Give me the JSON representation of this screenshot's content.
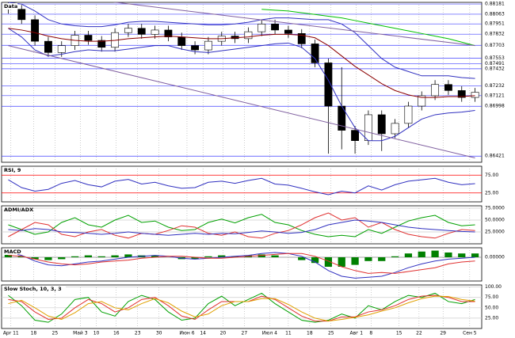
{
  "chart_data": [
    {
      "type": "candlestick",
      "title": "Data",
      "xlim": [
        -0.5,
        35.5
      ],
      "ylim": [
        0.8635,
        0.882
      ],
      "yticks": [
        0.88181,
        0.88063,
        0.87951,
        0.87832,
        0.87703,
        0.87553,
        0.87491,
        0.87432,
        0.87232,
        0.87121,
        0.86998,
        0.86421
      ],
      "grid_color": "#4040ff",
      "up_color": "#ffffff",
      "down_color": "#000000",
      "open": [
        0.8818,
        0.8812,
        0.88,
        0.8775,
        0.8762,
        0.877,
        0.8782,
        0.8776,
        0.8768,
        0.8785,
        0.879,
        0.8783,
        0.8788,
        0.878,
        0.877,
        0.8765,
        0.8775,
        0.8781,
        0.8778,
        0.8786,
        0.8795,
        0.8788,
        0.8784,
        0.8772,
        0.875,
        0.87,
        0.8672,
        0.866,
        0.869,
        0.8668,
        0.868,
        0.87,
        0.8712,
        0.8725,
        0.8718,
        0.871
      ],
      "high": [
        0.8823,
        0.8817,
        0.8805,
        0.878,
        0.8775,
        0.8787,
        0.8787,
        0.8781,
        0.879,
        0.8795,
        0.8795,
        0.8793,
        0.8793,
        0.8785,
        0.8775,
        0.878,
        0.8786,
        0.8786,
        0.8791,
        0.88,
        0.88,
        0.8793,
        0.8789,
        0.8777,
        0.8755,
        0.8745,
        0.8677,
        0.8695,
        0.8695,
        0.8685,
        0.8705,
        0.8717,
        0.873,
        0.873,
        0.8723,
        0.8721
      ],
      "low": [
        0.8807,
        0.8795,
        0.877,
        0.8757,
        0.8757,
        0.8765,
        0.8771,
        0.8763,
        0.8763,
        0.878,
        0.8778,
        0.8778,
        0.8775,
        0.8765,
        0.876,
        0.876,
        0.877,
        0.8773,
        0.8773,
        0.8781,
        0.8783,
        0.8779,
        0.8767,
        0.8745,
        0.8645,
        0.865,
        0.8645,
        0.8655,
        0.8648,
        0.8663,
        0.8675,
        0.8695,
        0.8707,
        0.8713,
        0.8705,
        0.8705
      ],
      "close": [
        0.8812,
        0.88,
        0.8775,
        0.8762,
        0.877,
        0.8782,
        0.8776,
        0.8768,
        0.8785,
        0.879,
        0.8783,
        0.8788,
        0.878,
        0.877,
        0.8765,
        0.8775,
        0.8781,
        0.8778,
        0.8786,
        0.8795,
        0.8788,
        0.8784,
        0.8772,
        0.875,
        0.87,
        0.8672,
        0.866,
        0.869,
        0.8668,
        0.868,
        0.87,
        0.8712,
        0.8725,
        0.8718,
        0.871,
        0.8716
      ],
      "series": [
        {
          "color": "#3030c0",
          "values": [
            0.882,
            0.8818,
            0.881,
            0.88,
            0.8795,
            0.8793,
            0.8792,
            0.8792,
            0.8794,
            0.8797,
            0.8798,
            0.8798,
            0.8797,
            0.8796,
            0.8795,
            0.8794,
            0.8794,
            0.8795,
            0.8797,
            0.88,
            0.8802,
            0.8802,
            0.8801,
            0.88,
            0.88,
            0.8795,
            0.8785,
            0.877,
            0.8755,
            0.8745,
            0.874,
            0.8735,
            0.8735,
            0.8735,
            0.8733,
            0.8732
          ]
        },
        {
          "color": "#3030c0",
          "values": [
            0.879,
            0.878,
            0.8765,
            0.8758,
            0.876,
            0.8763,
            0.8765,
            0.8764,
            0.8764,
            0.8766,
            0.8768,
            0.877,
            0.877,
            0.8766,
            0.8763,
            0.8762,
            0.8764,
            0.8766,
            0.8768,
            0.877,
            0.8772,
            0.8773,
            0.8768,
            0.8755,
            0.873,
            0.87,
            0.8675,
            0.866,
            0.866,
            0.8665,
            0.8675,
            0.8685,
            0.869,
            0.8692,
            0.8693,
            0.8695
          ]
        },
        {
          "color": "#8b0000",
          "values": [
            0.879,
            0.8788,
            0.8785,
            0.8781,
            0.8778,
            0.8776,
            0.8775,
            0.8775,
            0.8776,
            0.8778,
            0.8779,
            0.878,
            0.8781,
            0.878,
            0.8779,
            0.8778,
            0.8778,
            0.8779,
            0.878,
            0.8782,
            0.8783,
            0.8783,
            0.8782,
            0.8779,
            0.877,
            0.8758,
            0.8746,
            0.8736,
            0.8726,
            0.8718,
            0.8713,
            0.871,
            0.871,
            0.8711,
            0.8711,
            0.8712
          ]
        },
        {
          "color": "#00c000",
          "values": [
            null,
            null,
            null,
            null,
            null,
            null,
            null,
            null,
            null,
            null,
            null,
            null,
            null,
            null,
            null,
            null,
            null,
            null,
            null,
            0.8812,
            0.8811,
            0.881,
            0.8808,
            0.8806,
            0.8804,
            0.8802,
            0.8799,
            0.8796,
            0.8793,
            0.879,
            0.8787,
            0.8784,
            0.8781,
            0.8778,
            0.8774,
            0.877
          ]
        }
      ],
      "trendlines": [
        {
          "color": "#8060a0",
          "values": [
            0.8835,
            0.877
          ]
        },
        {
          "color": "#8060a0",
          "values": [
            0.877,
            0.864
          ]
        }
      ]
    },
    {
      "type": "line",
      "title": "RSI, 9",
      "ylim": [
        0,
        100
      ],
      "yticks": [
        {
          "value": 25,
          "label": "25.00"
        },
        {
          "value": 75,
          "label": "75.00"
        }
      ],
      "grid_color": "#ff0000",
      "series": [
        {
          "color": "#3030c0",
          "values": [
            62,
            40,
            30,
            35,
            52,
            60,
            48,
            42,
            58,
            63,
            50,
            55,
            45,
            38,
            40,
            55,
            58,
            52,
            60,
            66,
            50,
            47,
            38,
            28,
            20,
            30,
            25,
            45,
            33,
            48,
            58,
            62,
            66,
            55,
            48,
            51
          ]
        }
      ]
    },
    {
      "type": "line",
      "title": "ADMI/ADX",
      "ylim": [
        0,
        80
      ],
      "yticks": [
        {
          "value": 25,
          "label": "25.0000"
        },
        {
          "value": 50,
          "label": "50.0000"
        },
        {
          "value": 75,
          "label": "75.0000"
        }
      ],
      "grid_color": "#cccccc",
      "series": [
        {
          "color": "#00a000",
          "values": [
            40,
            30,
            20,
            25,
            45,
            55,
            40,
            35,
            50,
            60,
            45,
            48,
            35,
            28,
            30,
            45,
            52,
            44,
            55,
            62,
            45,
            40,
            28,
            20,
            15,
            18,
            15,
            30,
            22,
            35,
            48,
            55,
            60,
            45,
            38,
            40
          ]
        },
        {
          "color": "#e03030",
          "values": [
            15,
            30,
            45,
            40,
            20,
            15,
            25,
            30,
            18,
            12,
            22,
            20,
            28,
            38,
            35,
            22,
            18,
            25,
            15,
            12,
            22,
            28,
            40,
            55,
            65,
            50,
            55,
            35,
            45,
            30,
            20,
            15,
            12,
            22,
            30,
            28
          ]
        },
        {
          "color": "#3030c0",
          "values": [
            30,
            28,
            32,
            30,
            25,
            24,
            22,
            20,
            22,
            25,
            22,
            20,
            18,
            20,
            22,
            20,
            22,
            21,
            24,
            27,
            25,
            22,
            24,
            30,
            40,
            45,
            50,
            48,
            45,
            40,
            35,
            32,
            30,
            28,
            26,
            25
          ]
        }
      ]
    },
    {
      "type": "macd",
      "title": "MACD",
      "ylim": [
        -0.0025,
        0.001
      ],
      "yticks": [
        {
          "value": 0,
          "label": "0.00000"
        }
      ],
      "grid_color": "#888888",
      "color": "#008000",
      "values": [
        0.0003,
        0.0001,
        -0.0002,
        -0.0003,
        -0.0002,
        0.0001,
        0.0002,
        0.0001,
        0.0002,
        0.0003,
        0.0002,
        0.0002,
        0,
        -0.0002,
        -0.0002,
        0.0001,
        0.0002,
        0.0001,
        0.0002,
        0.0003,
        0.0002,
        0,
        -0.0003,
        -0.0006,
        -0.001,
        -0.001,
        -0.0008,
        -0.0004,
        -0.0004,
        0.0001,
        0.0004,
        0.0006,
        0.0007,
        0.0005,
        0.0004,
        0.0004
      ],
      "series": [
        {
          "color": "#3030c0",
          "values": [
            0.0005,
            0.0002,
            -0.0004,
            -0.0008,
            -0.0009,
            -0.0007,
            -0.0005,
            -0.0004,
            -0.0002,
            0,
            0.0001,
            0.0002,
            0.0001,
            -0.0001,
            -0.0002,
            -0.0001,
            0,
            0.0001,
            0.0002,
            0.0004,
            0.0005,
            0.0004,
            0.0001,
            -0.0005,
            -0.0014,
            -0.002,
            -0.0022,
            -0.0021,
            -0.002,
            -0.0016,
            -0.0011,
            -0.0007,
            -0.0004,
            -0.0002,
            -0.0001,
            0
          ]
        },
        {
          "color": "#e03030",
          "values": [
            0.0002,
            0.0001,
            -0.0002,
            -0.0005,
            -0.0007,
            -0.0008,
            -0.0007,
            -0.0005,
            -0.0004,
            -0.0003,
            -0.0001,
            0,
            0.0001,
            0.0001,
            0,
            -0.0001,
            -0.0001,
            0,
            0.0001,
            0.0002,
            0.0003,
            0.0004,
            0.0004,
            0.0001,
            -0.0004,
            -0.001,
            -0.0014,
            -0.0017,
            -0.0016,
            -0.0017,
            -0.0015,
            -0.0013,
            -0.0011,
            -0.0007,
            -0.0005,
            -0.0004
          ]
        }
      ]
    },
    {
      "type": "line",
      "title": "Slow Stoch, 10, 3, 3",
      "ylim": [
        0,
        105
      ],
      "yticks": [
        {
          "value": 25,
          "label": "25.00"
        },
        {
          "value": 50,
          "label": "50.00"
        },
        {
          "value": 75,
          "label": "75.00"
        },
        {
          "value": 100,
          "label": "100.00"
        }
      ],
      "grid_color": "#cccccc",
      "xticks": [
        {
          "value": 0.2,
          "label": "Apr 11"
        },
        {
          "value": 1.9,
          "label": "18"
        },
        {
          "value": 3.5,
          "label": "25"
        },
        {
          "value": 5.4,
          "label": "Май 3"
        },
        {
          "value": 6.6,
          "label": "10"
        },
        {
          "value": 8.1,
          "label": "16"
        },
        {
          "value": 9.7,
          "label": "23"
        },
        {
          "value": 11.3,
          "label": "30"
        },
        {
          "value": 13.4,
          "label": "Июн 6"
        },
        {
          "value": 14.6,
          "label": "14"
        },
        {
          "value": 16.1,
          "label": "20"
        },
        {
          "value": 17.7,
          "label": "27"
        },
        {
          "value": 19.6,
          "label": "Июл 4"
        },
        {
          "value": 21.0,
          "label": "11"
        },
        {
          "value": 22.6,
          "label": "18"
        },
        {
          "value": 24.2,
          "label": "25"
        },
        {
          "value": 26.1,
          "label": "Авг 1"
        },
        {
          "value": 27.2,
          "label": "8"
        },
        {
          "value": 29.3,
          "label": "15"
        },
        {
          "value": 30.8,
          "label": "22"
        },
        {
          "value": 32.6,
          "label": "29"
        },
        {
          "value": 34.6,
          "label": "Сен 5"
        }
      ],
      "series": [
        {
          "color": "#00a000",
          "values": [
            80,
            55,
            20,
            15,
            35,
            70,
            75,
            40,
            30,
            65,
            80,
            70,
            40,
            20,
            25,
            60,
            78,
            55,
            70,
            85,
            60,
            40,
            20,
            15,
            20,
            35,
            25,
            55,
            45,
            65,
            80,
            75,
            85,
            65,
            60,
            70
          ]
        },
        {
          "color": "#e03030",
          "values": [
            70,
            65,
            40,
            22,
            25,
            50,
            70,
            60,
            40,
            50,
            70,
            75,
            55,
            30,
            22,
            45,
            65,
            65,
            65,
            78,
            70,
            50,
            30,
            18,
            18,
            28,
            28,
            40,
            45,
            55,
            70,
            78,
            80,
            75,
            65,
            65
          ]
        },
        {
          "color": "#e0a000",
          "values": [
            60,
            68,
            50,
            30,
            22,
            38,
            60,
            65,
            50,
            45,
            60,
            72,
            62,
            42,
            28,
            35,
            55,
            65,
            65,
            72,
            72,
            58,
            40,
            25,
            18,
            22,
            27,
            33,
            42,
            50,
            62,
            72,
            78,
            77,
            70,
            66
          ]
        }
      ]
    }
  ]
}
